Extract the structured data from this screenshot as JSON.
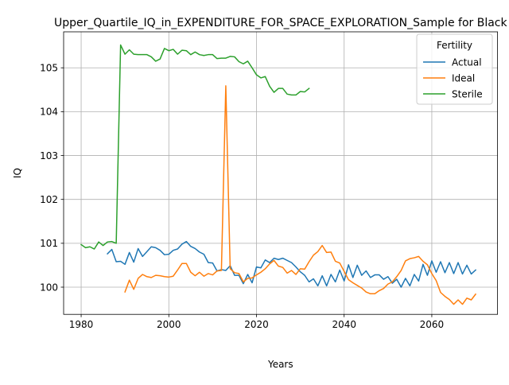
{
  "chart_data": {
    "type": "line",
    "title": "Upper_Quartile_IQ_in_EXPENDITURE_FOR_SPACE_EXPLORATION_Sample for Black",
    "xlabel": "Years",
    "ylabel": "IQ",
    "xlim": [
      1976,
      2075
    ],
    "ylim": [
      99.38,
      105.82
    ],
    "xticks": [
      1980,
      2000,
      2020,
      2040,
      2060
    ],
    "yticks": [
      100,
      101,
      102,
      103,
      104,
      105
    ],
    "grid": true,
    "legend": {
      "title": "Fertility",
      "placement": "top-right"
    },
    "series": [
      {
        "name": "Actual",
        "color": "#1f77b4",
        "x": [
          1986,
          1987,
          1988,
          1989,
          1990,
          1991,
          1992,
          1993,
          1994,
          1995,
          1996,
          1997,
          1998,
          1999,
          2000,
          2001,
          2002,
          2003,
          2004,
          2005,
          2006,
          2007,
          2008,
          2009,
          2010,
          2011,
          2012,
          2013,
          2014,
          2015,
          2016,
          2017,
          2018,
          2019,
          2020,
          2021,
          2022,
          2023,
          2024,
          2025,
          2026,
          2027,
          2028,
          2029,
          2030,
          2031,
          2032,
          2033,
          2034,
          2035,
          2036,
          2037,
          2038,
          2039,
          2040,
          2041,
          2042,
          2043,
          2044,
          2045,
          2046,
          2047,
          2048,
          2049,
          2050,
          2051,
          2052,
          2053,
          2054,
          2055,
          2056,
          2057,
          2058,
          2059,
          2060,
          2061,
          2062,
          2063,
          2064,
          2065,
          2066,
          2067,
          2068,
          2069,
          2070
        ],
        "values": [
          100.76,
          100.86,
          100.58,
          100.59,
          100.52,
          100.79,
          100.57,
          100.88,
          100.7,
          100.81,
          100.92,
          100.9,
          100.84,
          100.74,
          100.75,
          100.84,
          100.87,
          100.98,
          101.04,
          100.93,
          100.88,
          100.8,
          100.75,
          100.56,
          100.55,
          100.37,
          100.4,
          100.38,
          100.49,
          100.27,
          100.27,
          100.08,
          100.29,
          100.1,
          100.46,
          100.44,
          100.62,
          100.56,
          100.66,
          100.63,
          100.66,
          100.61,
          100.56,
          100.46,
          100.35,
          100.27,
          100.12,
          100.19,
          100.03,
          100.26,
          100.03,
          100.29,
          100.12,
          100.39,
          100.14,
          100.51,
          100.22,
          100.5,
          100.27,
          100.37,
          100.22,
          100.28,
          100.28,
          100.18,
          100.24,
          100.09,
          100.18,
          100.0,
          100.2,
          100.03,
          100.29,
          100.14,
          100.52,
          100.27,
          100.6,
          100.34,
          100.58,
          100.33,
          100.56,
          100.31,
          100.56,
          100.3,
          100.5,
          100.3,
          100.39
        ]
      },
      {
        "name": "Ideal",
        "color": "#ff7f0e",
        "x": [
          1990,
          1991,
          1992,
          1993,
          1994,
          1995,
          1996,
          1997,
          1998,
          1999,
          2000,
          2001,
          2002,
          2003,
          2004,
          2005,
          2006,
          2007,
          2008,
          2009,
          2010,
          2011,
          2012,
          2013,
          2014,
          2015,
          2016,
          2017,
          2018,
          2019,
          2020,
          2021,
          2022,
          2023,
          2024,
          2025,
          2026,
          2027,
          2028,
          2029,
          2030,
          2031,
          2032,
          2033,
          2034,
          2035,
          2036,
          2037,
          2038,
          2039,
          2040,
          2041,
          2042,
          2043,
          2044,
          2045,
          2046,
          2047,
          2048,
          2049,
          2050,
          2051,
          2052,
          2053,
          2054,
          2055,
          2056,
          2057,
          2058,
          2059,
          2060,
          2061,
          2062,
          2063,
          2064,
          2065,
          2066,
          2067,
          2068,
          2069,
          2070
        ],
        "values": [
          99.89,
          100.16,
          99.95,
          100.2,
          100.29,
          100.24,
          100.22,
          100.27,
          100.26,
          100.24,
          100.23,
          100.25,
          100.39,
          100.54,
          100.54,
          100.34,
          100.26,
          100.34,
          100.25,
          100.31,
          100.28,
          100.37,
          100.38,
          104.59,
          100.42,
          100.33,
          100.31,
          100.12,
          100.2,
          100.21,
          100.28,
          100.34,
          100.42,
          100.53,
          100.61,
          100.48,
          100.45,
          100.32,
          100.38,
          100.29,
          100.42,
          100.41,
          100.58,
          100.73,
          100.81,
          100.95,
          100.79,
          100.8,
          100.59,
          100.55,
          100.36,
          100.17,
          100.1,
          100.04,
          99.98,
          99.89,
          99.85,
          99.85,
          99.92,
          99.97,
          100.07,
          100.12,
          100.24,
          100.38,
          100.6,
          100.65,
          100.67,
          100.7,
          100.59,
          100.51,
          100.31,
          100.15,
          99.88,
          99.79,
          99.72,
          99.61,
          99.71,
          99.61,
          99.75,
          99.71,
          99.84
        ]
      },
      {
        "name": "Sterile",
        "color": "#2ca02c",
        "x": [
          1980,
          1981,
          1982,
          1983,
          1984,
          1985,
          1986,
          1987,
          1988,
          1989,
          1990,
          1991,
          1992,
          1993,
          1994,
          1995,
          1996,
          1997,
          1998,
          1999,
          2000,
          2001,
          2002,
          2003,
          2004,
          2005,
          2006,
          2007,
          2008,
          2009,
          2010,
          2011,
          2012,
          2013,
          2014,
          2015,
          2016,
          2017,
          2018,
          2019,
          2020,
          2021,
          2022,
          2023,
          2024,
          2025,
          2026,
          2027,
          2028,
          2029,
          2030,
          2031,
          2032
        ],
        "values": [
          100.97,
          100.9,
          100.92,
          100.87,
          101.03,
          100.95,
          101.03,
          101.04,
          101.0,
          105.52,
          105.31,
          105.41,
          105.31,
          105.3,
          105.3,
          105.3,
          105.25,
          105.15,
          105.2,
          105.44,
          105.39,
          105.42,
          105.31,
          105.4,
          105.39,
          105.3,
          105.36,
          105.3,
          105.28,
          105.3,
          105.3,
          105.21,
          105.22,
          105.22,
          105.26,
          105.25,
          105.14,
          105.09,
          105.15,
          105.0,
          104.84,
          104.77,
          104.8,
          104.58,
          104.44,
          104.53,
          104.53,
          104.4,
          104.38,
          104.38,
          104.46,
          104.45,
          104.53
        ]
      }
    ]
  }
}
